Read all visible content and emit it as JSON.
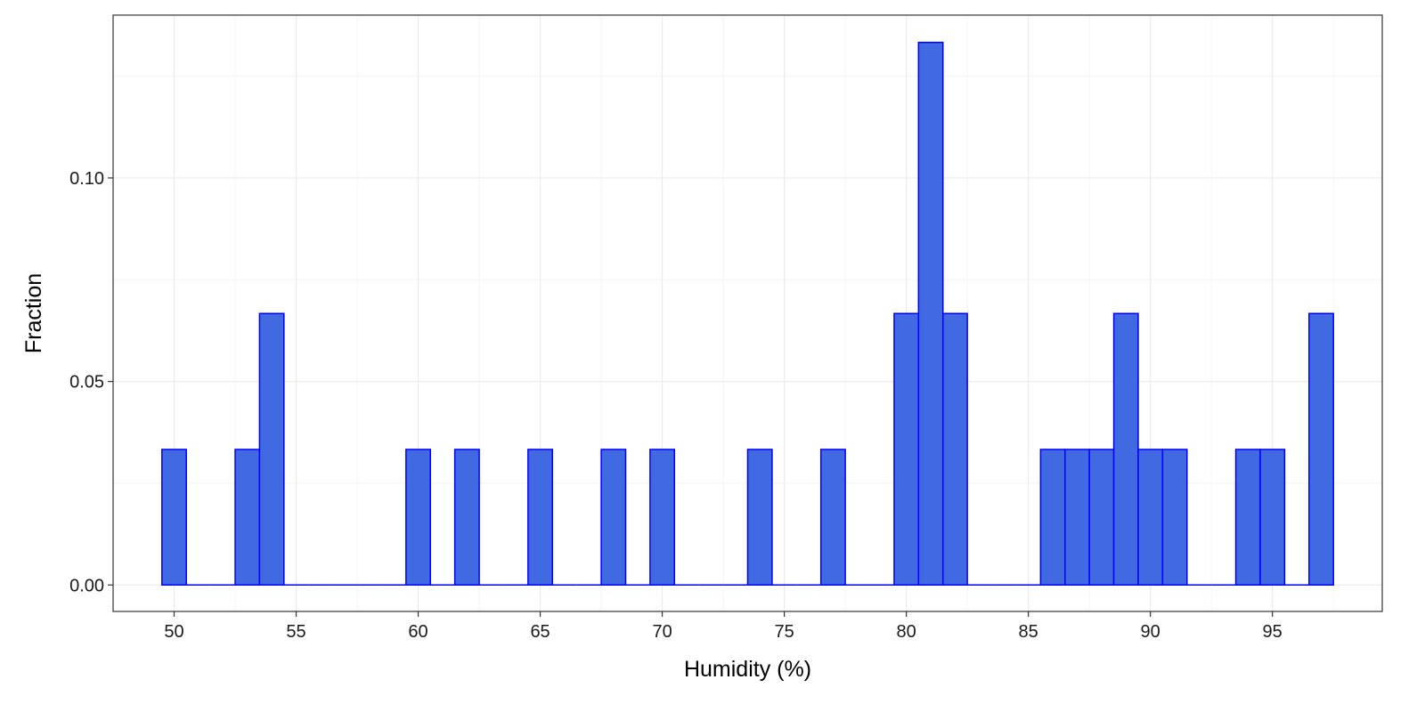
{
  "chart_data": {
    "type": "bar",
    "subtype": "histogram",
    "title": "",
    "xlabel": "Humidity (%)",
    "ylabel": "Fraction",
    "xlim": [
      47.5,
      99.5
    ],
    "ylim": [
      -0.0065,
      0.14
    ],
    "x_ticks": [
      50,
      55,
      60,
      65,
      70,
      75,
      80,
      85,
      90,
      95
    ],
    "x_tick_labels": [
      "50",
      "55",
      "60",
      "65",
      "70",
      "75",
      "80",
      "85",
      "90",
      "95"
    ],
    "y_ticks": [
      0.0,
      0.05,
      0.1
    ],
    "y_tick_labels": [
      "0.00",
      "0.05",
      "0.10"
    ],
    "bin_width": 1,
    "bins": [
      50,
      51,
      52,
      53,
      54,
      55,
      56,
      57,
      58,
      59,
      60,
      61,
      62,
      63,
      64,
      65,
      66,
      67,
      68,
      69,
      70,
      71,
      72,
      73,
      74,
      75,
      76,
      77,
      78,
      79,
      80,
      81,
      82,
      83,
      84,
      85,
      86,
      87,
      88,
      89,
      90,
      91,
      92,
      93,
      94,
      95,
      96,
      97
    ],
    "values": [
      0.0333,
      0,
      0,
      0.0333,
      0.0667,
      0,
      0,
      0,
      0,
      0,
      0.0333,
      0,
      0.0333,
      0,
      0,
      0.0333,
      0,
      0,
      0.0333,
      0,
      0.0333,
      0,
      0,
      0,
      0.0333,
      0,
      0,
      0.0333,
      0,
      0,
      0.0667,
      0.1333,
      0.0667,
      0,
      0,
      0,
      0.0333,
      0.0333,
      0.0333,
      0.0667,
      0.0333,
      0.0333,
      0,
      0,
      0.0333,
      0.0333,
      0,
      0.0667
    ],
    "grid": true,
    "colors": {
      "fill": "#4169E1",
      "outline": "#0000FF",
      "panel_border": "#333333",
      "grid": "#ebebeb"
    }
  }
}
